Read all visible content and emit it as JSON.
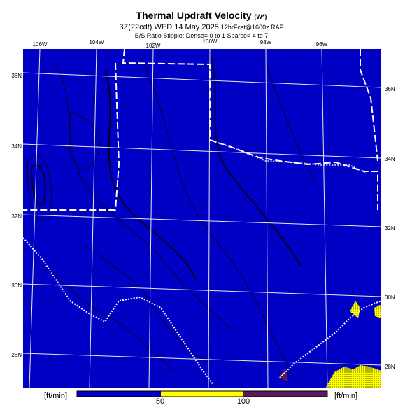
{
  "header": {
    "title": "Thermal Updraft Velocity",
    "title_suffix": "(W*)",
    "subtitle": "3Z(22cdt) WED 14 May 2025",
    "subtitle_suffix": "12hrFcst@1600z RAP",
    "note": "B/S Ratio Stipple: Dense= 0 to 1 Sparse= 4 to 7"
  },
  "map": {
    "lon_labels": [
      "106W",
      "104W",
      "102W",
      "100W",
      "98W",
      "96W"
    ],
    "lat_labels_left": [
      "36N",
      "34N",
      "32N",
      "30N",
      "28N"
    ],
    "lat_labels_right": [
      "36N",
      "34N",
      "32N",
      "30N",
      "28N"
    ]
  },
  "colorbar": {
    "unit_left": "[ft/min]",
    "unit_right": "[ft/min]",
    "ticks": [
      50,
      100
    ]
  }
}
